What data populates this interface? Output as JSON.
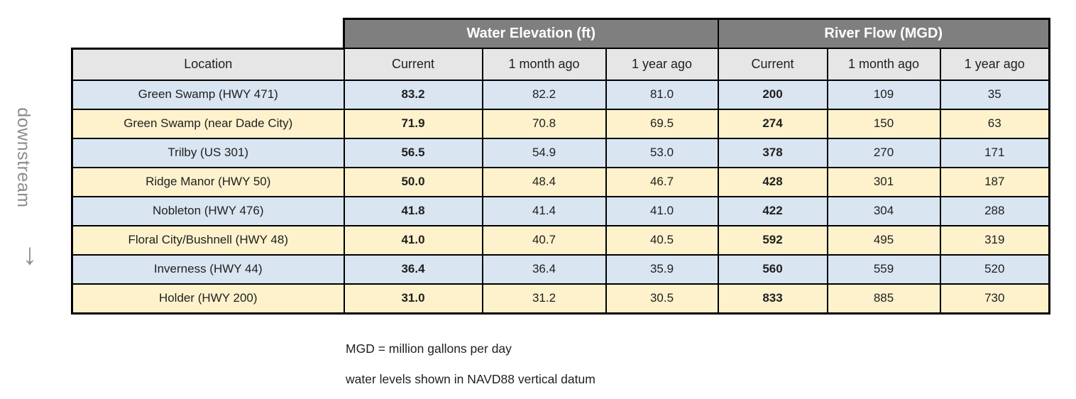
{
  "chart_data": {
    "type": "table",
    "group_headers": [
      "Water Elevation (ft)",
      "River Flow (MGD)"
    ],
    "columns": [
      "Location",
      "Current",
      "1 month ago",
      "1 year ago",
      "Current",
      "1 month ago",
      "1 year ago"
    ],
    "rows": [
      {
        "location": "Green Swamp (HWY 471)",
        "values": [
          "83.2",
          "82.2",
          "81.0",
          "200",
          "109",
          "35"
        ]
      },
      {
        "location": "Green Swamp (near Dade City)",
        "values": [
          "71.9",
          "70.8",
          "69.5",
          "274",
          "150",
          "63"
        ]
      },
      {
        "location": "Trilby (US 301)",
        "values": [
          "56.5",
          "54.9",
          "53.0",
          "378",
          "270",
          "171"
        ]
      },
      {
        "location": "Ridge Manor (HWY 50)",
        "values": [
          "50.0",
          "48.4",
          "46.7",
          "428",
          "301",
          "187"
        ]
      },
      {
        "location": "Nobleton (HWY 476)",
        "values": [
          "41.8",
          "41.4",
          "41.0",
          "422",
          "304",
          "288"
        ]
      },
      {
        "location": "Floral City/Bushnell (HWY 48)",
        "values": [
          "41.0",
          "40.7",
          "40.5",
          "592",
          "495",
          "319"
        ]
      },
      {
        "location": "Inverness (HWY 44)",
        "values": [
          "36.4",
          "36.4",
          "35.9",
          "560",
          "559",
          "520"
        ]
      },
      {
        "location": "Holder (HWY 200)",
        "values": [
          "31.0",
          "31.2",
          "30.5",
          "833",
          "885",
          "730"
        ]
      }
    ]
  },
  "sidebar": {
    "label": "downstream",
    "arrow": "↓"
  },
  "notes": {
    "mgd": "MGD = million gallons per day",
    "datum": "water levels shown in NAVD88 vertical datum"
  },
  "colors": {
    "group_header_bg": "#7f7f7f",
    "group_header_text": "#ffffff",
    "column_header_bg": "#e7e6e6",
    "row_blue": "#d9e5f1",
    "row_cream": "#fdf2cc",
    "border": "#000000",
    "sidebar_text": "#8c8c8c",
    "cell_text": "#1f1f1f"
  }
}
